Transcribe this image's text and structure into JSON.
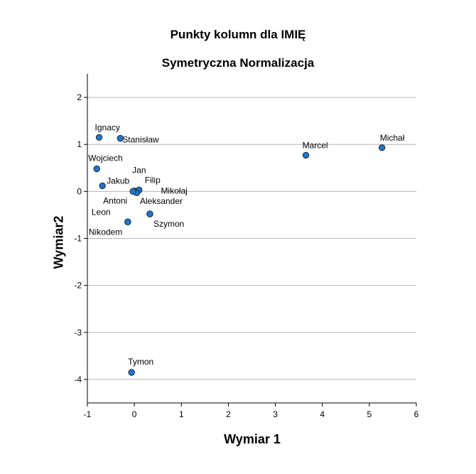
{
  "chart_data": {
    "type": "scatter",
    "title": "Punkty kolumn dla IMIĘ",
    "subtitle": "Symetryczna Normalizacja",
    "xlabel": "Wymiar 1",
    "ylabel": "Wymiar2",
    "xlim": [
      -1,
      6
    ],
    "ylim": [
      -4.5,
      2.5
    ],
    "xticks": [
      "-1",
      "0",
      "1",
      "2",
      "3",
      "4",
      "5",
      "6"
    ],
    "yticks": [
      "2",
      "1",
      "0",
      "-1",
      "-2",
      "-3",
      "-4"
    ],
    "grid": "horizontal",
    "marker_color": "#1f77c9",
    "marker_edge_color": "#1a2a3a",
    "points": [
      {
        "label": "Ignacy",
        "x": -0.75,
        "y": 1.15
      },
      {
        "label": "Stanisław",
        "x": -0.3,
        "y": 1.13
      },
      {
        "label": "Wojciech",
        "x": -0.8,
        "y": 0.48
      },
      {
        "label": "Jakub",
        "x": -0.68,
        "y": 0.12
      },
      {
        "label": "Jan",
        "x": 0.0,
        "y": 0.01
      },
      {
        "label": "Filip",
        "x": 0.1,
        "y": 0.03
      },
      {
        "label": "Mikołaj",
        "x": 0.05,
        "y": -0.03
      },
      {
        "label": "Antoni",
        "x": -0.03,
        "y": 0.0
      },
      {
        "label": "Aleksander",
        "x": 0.33,
        "y": -0.48
      },
      {
        "label": "Szymon",
        "x": 0.33,
        "y": -0.48
      },
      {
        "label": "Leon",
        "x": -0.14,
        "y": -0.65
      },
      {
        "label": "Nikodem",
        "x": -0.14,
        "y": -0.65
      },
      {
        "label": "Marcel",
        "x": 3.65,
        "y": 0.77
      },
      {
        "label": "Michał",
        "x": 5.27,
        "y": 0.93
      },
      {
        "label": "Tymon",
        "x": -0.06,
        "y": -3.85
      }
    ]
  }
}
